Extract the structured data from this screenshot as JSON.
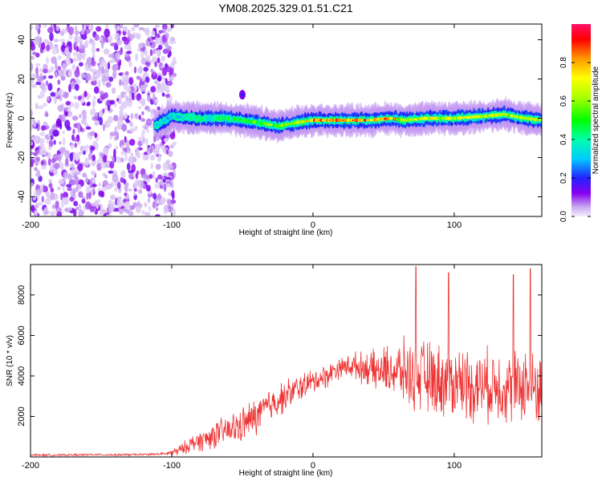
{
  "title": "YM08.2025.329.01.51.C21",
  "colors": {
    "snr_line": "#ee3333",
    "background": "#ffffff",
    "spectral_low": "#e8d8f8",
    "spectral_high": "#ff0000"
  },
  "chart_data": [
    {
      "type": "heatmap",
      "name": "spectrogram",
      "title": "YM08.2025.329.01.51.C21",
      "xlabel": "Height of straight line (km)",
      "ylabel": "Frequency (Hz)",
      "xlim": [
        -200,
        162
      ],
      "ylim": [
        -50,
        48
      ],
      "xticks": [
        -200,
        -100,
        0,
        100
      ],
      "yticks": [
        -40,
        -20,
        0,
        20,
        40
      ],
      "xtick_labels": [
        "-200",
        "-100",
        "0",
        "100"
      ],
      "ytick_labels": [
        "-40",
        "-20",
        "0",
        "20",
        "40"
      ],
      "noise_region": [
        -200,
        -98
      ],
      "signal_track": [
        {
          "x": -112,
          "y": -4
        },
        {
          "x": -100,
          "y": 1
        },
        {
          "x": -80,
          "y": 0
        },
        {
          "x": -60,
          "y": 0
        },
        {
          "x": -40,
          "y": -2
        },
        {
          "x": -25,
          "y": -4
        },
        {
          "x": -10,
          "y": -2
        },
        {
          "x": 0,
          "y": -1
        },
        {
          "x": 20,
          "y": -1
        },
        {
          "x": 40,
          "y": -1
        },
        {
          "x": 55,
          "y": 0
        },
        {
          "x": 65,
          "y": -1
        },
        {
          "x": 80,
          "y": 0
        },
        {
          "x": 100,
          "y": 0
        },
        {
          "x": 120,
          "y": 1
        },
        {
          "x": 135,
          "y": 2
        },
        {
          "x": 150,
          "y": 0
        },
        {
          "x": 162,
          "y": -1
        }
      ],
      "outlier": {
        "x": -50,
        "y": 12
      },
      "colorbar": {
        "label": "Normalized spectral amplitude",
        "range": [
          0.0,
          1.0
        ],
        "ticks": [
          0.0,
          0.2,
          0.4,
          0.6,
          0.8
        ],
        "tick_labels": [
          "0.0",
          "0.2",
          "0.4",
          "0.6",
          "0.8"
        ]
      }
    },
    {
      "type": "line",
      "name": "snr",
      "xlabel": "Height of straight line (km)",
      "ylabel": "SNR (10 * v/v)",
      "xlim": [
        -200,
        162
      ],
      "ylim": [
        0,
        9500
      ],
      "xticks": [
        -200,
        -100,
        0,
        100
      ],
      "yticks": [
        2000,
        4000,
        6000,
        8000
      ],
      "xtick_labels": [
        "-200",
        "-100",
        "0",
        "100"
      ],
      "ytick_labels": [
        "2000",
        "4000",
        "6000",
        "8000"
      ],
      "series": [
        {
          "name": "SNR",
          "x": [
            -200,
            -180,
            -160,
            -140,
            -120,
            -105,
            -95,
            -90,
            -85,
            -80,
            -75,
            -70,
            -65,
            -60,
            -55,
            -50,
            -45,
            -40,
            -35,
            -30,
            -25,
            -20,
            -15,
            -10,
            -5,
            0,
            5,
            10,
            15,
            20,
            25,
            30,
            35,
            40,
            45,
            50,
            55,
            60,
            65,
            70,
            75,
            80,
            85,
            90,
            95,
            100,
            105,
            110,
            115,
            120,
            125,
            130,
            135,
            140,
            145,
            150,
            155,
            160
          ],
          "mean": [
            100,
            90,
            110,
            100,
            120,
            150,
            300,
            500,
            700,
            800,
            900,
            1100,
            1200,
            1300,
            1400,
            1600,
            1800,
            2000,
            2300,
            2600,
            2800,
            3000,
            3200,
            3400,
            3600,
            3700,
            3900,
            4000,
            4300,
            4400,
            4500,
            4500,
            4400,
            4400,
            4200,
            4300,
            4300,
            4200,
            4200,
            4000,
            4000,
            4000,
            3800,
            3800,
            3700,
            3700,
            3800,
            3600,
            3500,
            3600,
            3500,
            3700,
            3400,
            3500,
            3400,
            3700,
            3300,
            3500
          ],
          "spread": [
            60,
            60,
            60,
            60,
            60,
            80,
            300,
            400,
            500,
            600,
            700,
            800,
            800,
            900,
            1000,
            1000,
            1100,
            1100,
            1100,
            1000,
            1000,
            900,
            900,
            800,
            800,
            700,
            700,
            700,
            600,
            600,
            700,
            800,
            900,
            1000,
            1200,
            1300,
            1500,
            1700,
            1900,
            2000,
            2100,
            2100,
            2100,
            2100,
            2100,
            2100,
            2100,
            2100,
            2100,
            2100,
            2100,
            2100,
            2100,
            2100,
            2200,
            2200,
            2200,
            2200
          ]
        }
      ],
      "peaks": [
        {
          "x": 73,
          "y": 9400
        },
        {
          "x": 96,
          "y": 9100
        },
        {
          "x": 142,
          "y": 9000
        },
        {
          "x": 154,
          "y": 9300
        }
      ]
    }
  ]
}
